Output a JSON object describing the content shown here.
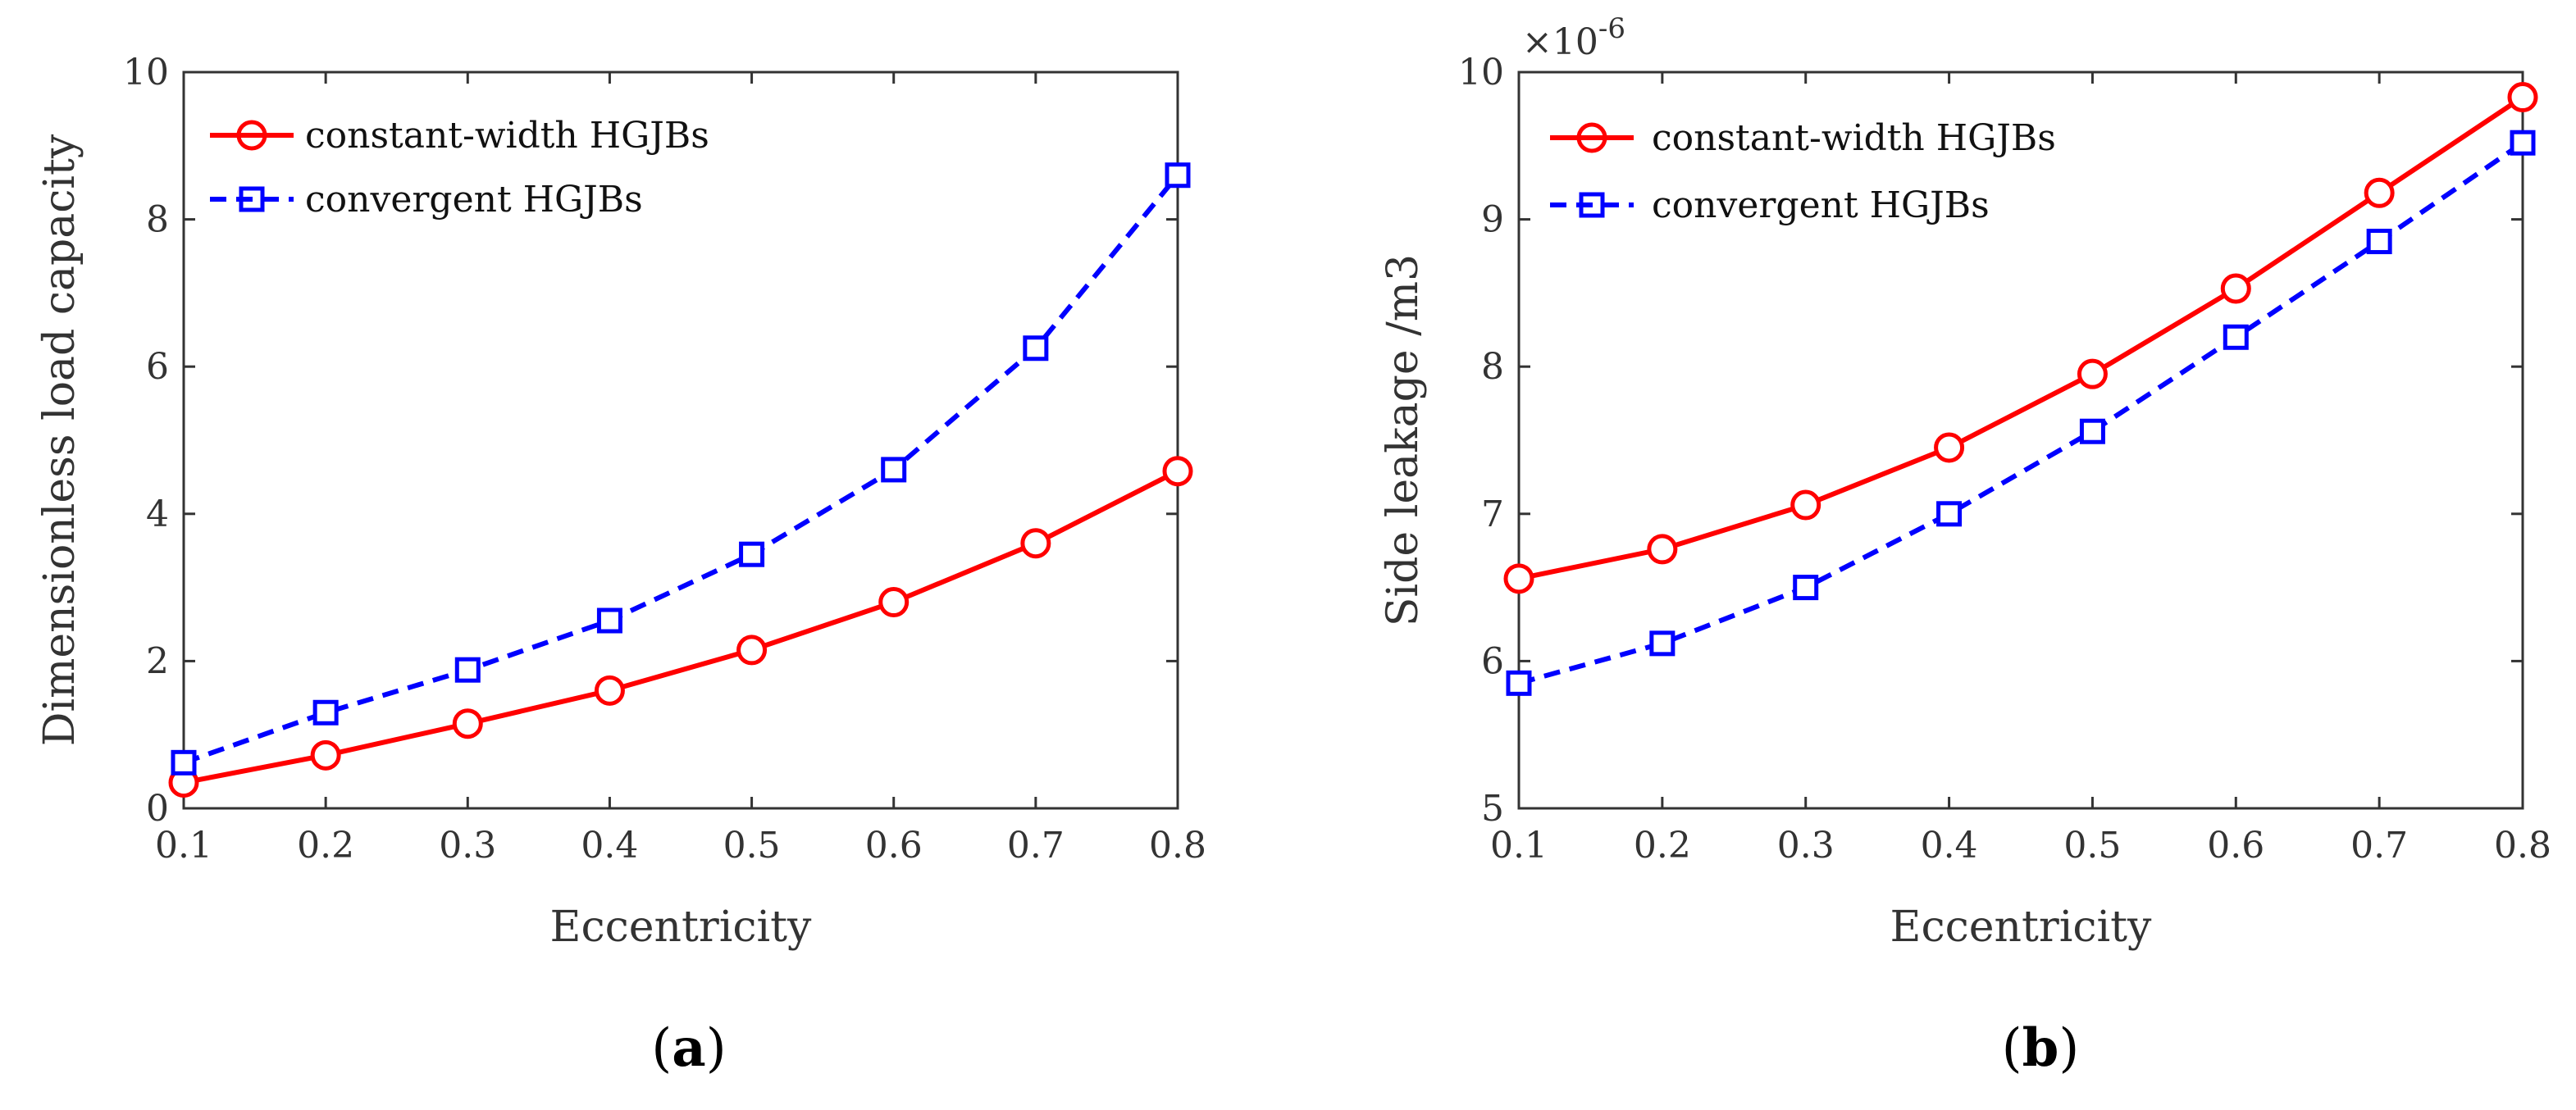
{
  "chart_data": [
    {
      "type": "line",
      "caption": "(a)",
      "caption_letter": "a",
      "xlabel": "Eccentricity",
      "ylabel": "Dimensionless load capacity",
      "x": [
        0.1,
        0.2,
        0.3,
        0.4,
        0.5,
        0.6,
        0.7,
        0.8
      ],
      "xlim": [
        0.1,
        0.8
      ],
      "ylim": [
        0,
        10
      ],
      "xticks": [
        "0.1",
        "0.2",
        "0.3",
        "0.4",
        "0.5",
        "0.6",
        "0.7",
        "0.8"
      ],
      "yticks": [
        "0",
        "2",
        "4",
        "6",
        "8",
        "10"
      ],
      "exponent_label": "",
      "legend_position": "top-left",
      "series": [
        {
          "name": "constant-width HGJBs",
          "color": "#ff0000",
          "line": "solid",
          "marker": "circle",
          "values": [
            0.35,
            0.72,
            1.15,
            1.6,
            2.15,
            2.8,
            3.6,
            4.58
          ]
        },
        {
          "name": "convergent HGJBs",
          "color": "#0000ff",
          "line": "dashed",
          "marker": "square",
          "values": [
            0.62,
            1.3,
            1.88,
            2.55,
            3.45,
            4.6,
            6.25,
            8.6
          ]
        }
      ]
    },
    {
      "type": "line",
      "caption": "(b)",
      "caption_letter": "b",
      "xlabel": "Eccentricity",
      "ylabel": "Side leakage /m3",
      "x": [
        0.1,
        0.2,
        0.3,
        0.4,
        0.5,
        0.6,
        0.7,
        0.8
      ],
      "xlim": [
        0.1,
        0.8
      ],
      "ylim": [
        5,
        10
      ],
      "xticks": [
        "0.1",
        "0.2",
        "0.3",
        "0.4",
        "0.5",
        "0.6",
        "0.7",
        "0.8"
      ],
      "yticks": [
        "5",
        "6",
        "7",
        "8",
        "9",
        "10"
      ],
      "exponent_base": "×10",
      "exponent_power": "-6",
      "legend_position": "top-left",
      "series": [
        {
          "name": "constant-width HGJBs",
          "color": "#ff0000",
          "line": "solid",
          "marker": "circle",
          "values": [
            6.56,
            6.76,
            7.06,
            7.45,
            7.95,
            8.53,
            9.18,
            9.83
          ]
        },
        {
          "name": "convergent HGJBs",
          "color": "#0000ff",
          "line": "dashed",
          "marker": "square",
          "values": [
            5.85,
            6.12,
            6.5,
            7.0,
            7.56,
            8.2,
            8.85,
            9.52
          ]
        }
      ]
    }
  ]
}
